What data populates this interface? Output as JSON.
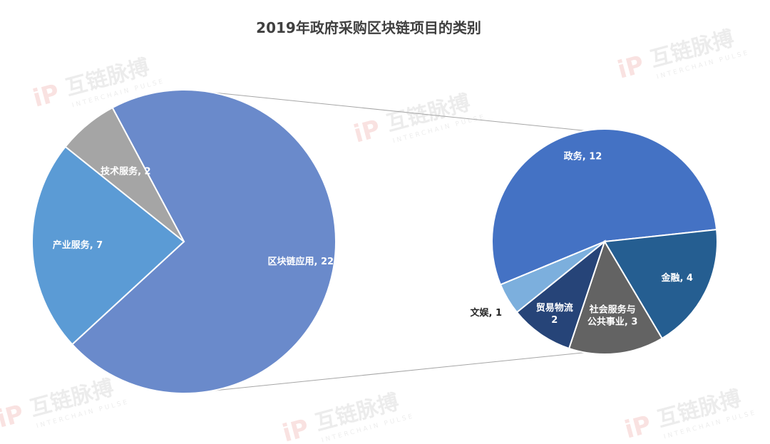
{
  "title": "2019年政府采购区块链项目的类别",
  "watermark": {
    "logo_text": "iP",
    "name": "互链脉搏",
    "sub": "INTERCHAIN PULSE"
  },
  "chart_data": [
    {
      "type": "pie",
      "title": "2019年政府采购区块链项目的类别",
      "categories": [
        "区块链应用",
        "产业服务",
        "技术服务"
      ],
      "values": [
        22,
        7,
        2
      ],
      "labels": [
        "区块链应用, 22",
        "产业服务, 7",
        "技术服务, 2"
      ],
      "colors": [
        "#6A8ACB",
        "#5B9BD5",
        "#A5A5A5"
      ]
    },
    {
      "type": "pie",
      "categories": [
        "政务",
        "金融",
        "社会服务与公共事业",
        "贸易物流",
        "文娱"
      ],
      "values": [
        12,
        4,
        3,
        2,
        1
      ],
      "labels": [
        "政务, 12",
        "金融, 4",
        "社会服务与\n公共事业, 3",
        "贸易物流\n2",
        "文娱, 1"
      ],
      "colors": [
        "#4472C4",
        "#255E91",
        "#636363",
        "#264478",
        "#7CAFDD"
      ]
    }
  ]
}
